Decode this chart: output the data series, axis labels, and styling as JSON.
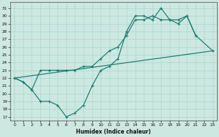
{
  "xlabel": "Humidex (Indice chaleur)",
  "bg_color": "#cce8e0",
  "grid_color": "#aad4cc",
  "line_color": "#1a7a70",
  "xlim": [
    -0.5,
    23.5
  ],
  "ylim": [
    16.5,
    31.8
  ],
  "xticks": [
    0,
    1,
    2,
    3,
    4,
    5,
    6,
    7,
    8,
    9,
    10,
    11,
    12,
    13,
    14,
    15,
    16,
    17,
    18,
    19,
    20,
    21,
    22,
    23
  ],
  "yticks": [
    17,
    18,
    19,
    20,
    21,
    22,
    23,
    24,
    25,
    26,
    27,
    28,
    29,
    30,
    31
  ],
  "line1_x": [
    0,
    1,
    2,
    3,
    4,
    5,
    6,
    7,
    8,
    9,
    10,
    11,
    12,
    13,
    14,
    15,
    16,
    17,
    18,
    19,
    20,
    21
  ],
  "line1_y": [
    22.0,
    21.5,
    20.5,
    19.0,
    19.0,
    18.5,
    17.0,
    17.5,
    18.5,
    21.0,
    23.0,
    23.5,
    24.5,
    28.0,
    30.0,
    30.0,
    29.5,
    31.0,
    29.5,
    29.5,
    30.0,
    27.5
  ],
  "line2_x": [
    0,
    1,
    2,
    3,
    4,
    5,
    6,
    7,
    8,
    9,
    10,
    11,
    12,
    13,
    14,
    15,
    16,
    17,
    18,
    19,
    20,
    21,
    23
  ],
  "line2_y": [
    22.0,
    21.5,
    20.5,
    23.0,
    23.0,
    23.0,
    23.0,
    23.0,
    23.5,
    23.5,
    24.5,
    25.5,
    26.0,
    27.5,
    29.5,
    29.5,
    30.0,
    29.5,
    29.5,
    29.0,
    30.0,
    27.5,
    25.5
  ],
  "line3_x": [
    0,
    23
  ],
  "line3_y": [
    22.0,
    25.5
  ],
  "linewidth": 0.9,
  "markersize": 3.5,
  "marker": "+"
}
